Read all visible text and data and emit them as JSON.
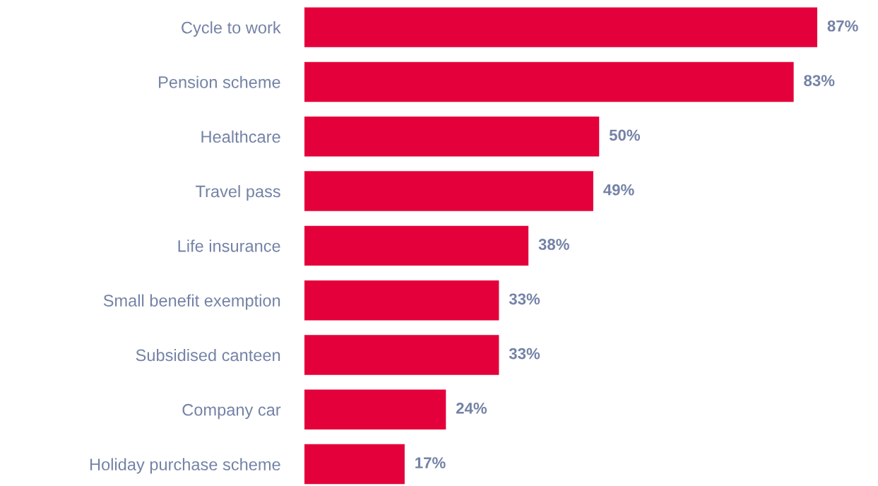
{
  "chart_data": {
    "type": "bar",
    "orientation": "horizontal",
    "categories": [
      "Cycle to work",
      "Pension scheme",
      "Healthcare",
      "Travel pass",
      "Life insurance",
      "Small benefit exemption",
      "Subsidised canteen",
      "Company car",
      "Holiday purchase scheme"
    ],
    "values": [
      87,
      83,
      50,
      49,
      38,
      33,
      33,
      24,
      17
    ],
    "value_labels": [
      "87%",
      "83%",
      "50%",
      "49%",
      "38%",
      "33%",
      "33%",
      "24%",
      "17%"
    ],
    "color": "#e4003a",
    "grid": false,
    "legend": false,
    "tick_labels": "y"
  }
}
